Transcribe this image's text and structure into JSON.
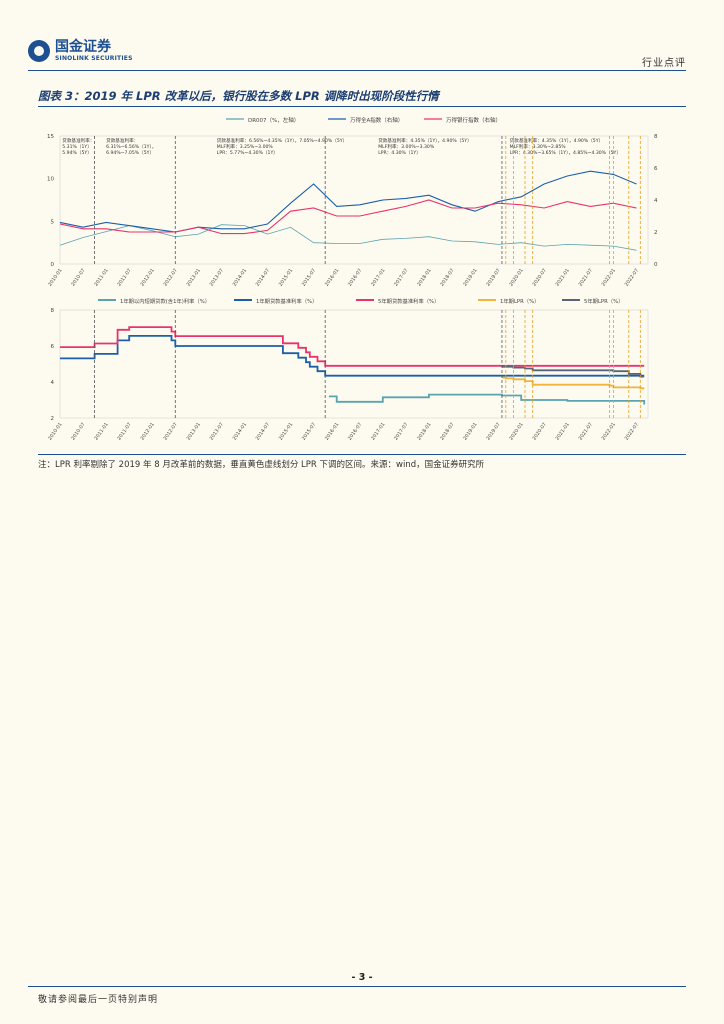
{
  "header": {
    "logo_cn": "国金证券",
    "logo_en": "SINOLINK SECURITIES",
    "category": "行业点评"
  },
  "figure": {
    "title": "图表 3：2019 年 LPR 改革以后，银行股在多数 LPR 调降时出现阶段性行情",
    "note": "注：LPR 利率剔除了 2019 年 8 月改革前的数据，垂直黄色虚线划分 LPR 下调的区间。来源：wind，国金证券研究所"
  },
  "footer": {
    "page": "- 3 -",
    "disclaimer": "敬请参阅最后一页特别声明"
  },
  "colors": {
    "brand": "#1d4f91",
    "dr007": "#5aa3b0",
    "wind_index": "#1c5fa8",
    "bank_index": "#e8336d",
    "lpr1y": "#f0b43c",
    "lpr5y": "#5a6478",
    "vline_grey": "#555555",
    "vline_yellow": "#e8a020"
  },
  "chart_data": [
    {
      "type": "line",
      "legend": [
        "DR007（%，左轴）",
        "万得全A指数（右轴）",
        "万得银行指数（右轴）"
      ],
      "x_ticks": [
        "2010-01",
        "2010-07",
        "2011-01",
        "2011-07",
        "2012-01",
        "2012-07",
        "2013-01",
        "2013-07",
        "2014-01",
        "2014-07",
        "2015-01",
        "2015-07",
        "2016-01",
        "2016-07",
        "2017-01",
        "2017-07",
        "2018-01",
        "2018-07",
        "2019-01",
        "2019-07",
        "2020-01",
        "2020-07",
        "2021-01",
        "2021-07",
        "2022-01",
        "2022-07"
      ],
      "y_left_ticks": [
        "15",
        "10",
        "5",
        "0"
      ],
      "y_right_ticks": [
        "8,000",
        "6,000",
        "4,000",
        "2,000",
        "0"
      ],
      "ylim_left": [
        0,
        15
      ],
      "ylim_right": [
        0,
        8000
      ],
      "annotations": [
        "贷款基准利率：\n5.31%（1Y）\n5.94%（5Y）",
        "贷款基准利率：\n6.31%~6.56%（1Y），\n6.94%~7.05%（5Y）",
        "贷款基准利率：6.56%~4.35%（1Y），7.05%~4.90%（5Y）\nMLF利率：3.25%~3.00%\nLPR：5.77%~4.30%（1Y）",
        "贷款基准利率：4.35%（1Y），4.90%（5Y）\nMLF利率：3.00%~3.30%\nLPR：4.30%（1Y）",
        "贷款基准利率：4.35%（1Y），4.90%（5Y）\nMLF利率：3.30%~2.85%\nLPR：4.30%~3.65%（1Y），4.85%~4.30%（5Y）"
      ],
      "series": [
        {
          "name": "DR007（%，左轴）",
          "x": [
            "2010-01",
            "2010-07",
            "2011-01",
            "2011-07",
            "2012-01",
            "2012-07",
            "2013-01",
            "2013-07",
            "2014-01",
            "2014-07",
            "2015-01",
            "2015-07",
            "2016-01",
            "2016-07",
            "2017-01",
            "2017-07",
            "2018-01",
            "2018-07",
            "2019-01",
            "2019-07",
            "2020-01",
            "2020-07",
            "2021-01",
            "2021-07",
            "2022-01",
            "2022-07"
          ],
          "values": [
            2.2,
            3.1,
            3.8,
            4.5,
            3.9,
            3.2,
            3.5,
            4.6,
            4.5,
            3.5,
            4.3,
            2.5,
            2.4,
            2.4,
            2.9,
            3.0,
            3.2,
            2.7,
            2.6,
            2.3,
            2.5,
            2.1,
            2.3,
            2.2,
            2.1,
            1.6
          ]
        },
        {
          "name": "万得全A指数（右轴）",
          "x": [
            "2010-01",
            "2010-07",
            "2011-01",
            "2011-07",
            "2012-01",
            "2012-07",
            "2013-01",
            "2013-07",
            "2014-01",
            "2014-07",
            "2015-01",
            "2015-07",
            "2016-01",
            "2016-07",
            "2017-01",
            "2017-07",
            "2018-01",
            "2018-07",
            "2019-01",
            "2019-07",
            "2020-01",
            "2020-07",
            "2021-01",
            "2021-07",
            "2022-01",
            "2022-07"
          ],
          "values": [
            2600,
            2300,
            2600,
            2400,
            2200,
            2000,
            2300,
            2200,
            2200,
            2500,
            3800,
            5000,
            3600,
            3700,
            4000,
            4100,
            4300,
            3700,
            3300,
            3900,
            4200,
            5000,
            5500,
            5800,
            5600,
            5000
          ]
        },
        {
          "name": "万得银行指数（右轴）",
          "x": [
            "2010-01",
            "2010-07",
            "2011-01",
            "2011-07",
            "2012-01",
            "2012-07",
            "2013-01",
            "2013-07",
            "2014-01",
            "2014-07",
            "2015-01",
            "2015-07",
            "2016-01",
            "2016-07",
            "2017-01",
            "2017-07",
            "2018-01",
            "2018-07",
            "2019-01",
            "2019-07",
            "2020-01",
            "2020-07",
            "2021-01",
            "2021-07",
            "2022-01",
            "2022-07"
          ],
          "values": [
            2500,
            2200,
            2200,
            2000,
            2000,
            2000,
            2300,
            1900,
            1900,
            2100,
            3300,
            3500,
            3000,
            3000,
            3300,
            3600,
            4000,
            3500,
            3500,
            3800,
            3700,
            3500,
            3900,
            3600,
            3800,
            3500
          ]
        }
      ]
    },
    {
      "type": "line",
      "legend": [
        "1年期以内短期贷款(含1年)利率（%）",
        "1年期贷款基准利率（%）",
        "5年期贷款基准利率（%）",
        "1年期LPR（%）",
        "5年期LPR（%）"
      ],
      "x_ticks": [
        "2010-01",
        "2010-07",
        "2011-01",
        "2011-07",
        "2012-01",
        "2012-07",
        "2013-01",
        "2013-07",
        "2014-01",
        "2014-07",
        "2015-01",
        "2015-07",
        "2016-01",
        "2016-07",
        "2017-01",
        "2017-07",
        "2018-01",
        "2018-07",
        "2019-01",
        "2019-07",
        "2020-01",
        "2020-07",
        "2021-01",
        "2021-07",
        "2022-01",
        "2022-07"
      ],
      "y_ticks": [
        "8",
        "6",
        "4",
        "2"
      ],
      "ylim": [
        2,
        8
      ],
      "series": [
        {
          "name": "1年期以内短期贷款(含1年)利率（%）",
          "x": [
            "2015-11",
            "2016-01",
            "2017-01",
            "2018-01",
            "2019-01",
            "2019-08",
            "2020-01",
            "2021-01",
            "2022-01",
            "2022-09"
          ],
          "values": [
            3.2,
            2.9,
            3.15,
            3.3,
            3.3,
            3.25,
            3.0,
            2.95,
            2.95,
            2.75
          ]
        },
        {
          "name": "1年期贷款基准利率（%）",
          "x": [
            "2010-01",
            "2010-10",
            "2011-04",
            "2011-07",
            "2012-06",
            "2012-07",
            "2014-11",
            "2015-03",
            "2015-05",
            "2015-06",
            "2015-08",
            "2015-10",
            "2022-09"
          ],
          "values": [
            5.31,
            5.56,
            6.31,
            6.56,
            6.31,
            6.0,
            5.6,
            5.35,
            5.1,
            4.85,
            4.6,
            4.35,
            4.35
          ]
        },
        {
          "name": "5年期贷款基准利率（%）",
          "x": [
            "2010-01",
            "2010-10",
            "2011-04",
            "2011-07",
            "2012-06",
            "2012-07",
            "2014-11",
            "2015-03",
            "2015-05",
            "2015-06",
            "2015-08",
            "2015-10",
            "2022-09"
          ],
          "values": [
            5.94,
            6.14,
            6.9,
            7.05,
            6.8,
            6.55,
            6.15,
            5.9,
            5.65,
            5.4,
            5.15,
            4.9,
            4.9
          ]
        },
        {
          "name": "1年期LPR（%）",
          "x": [
            "2019-08",
            "2019-09",
            "2019-11",
            "2020-02",
            "2020-04",
            "2021-12",
            "2022-01",
            "2022-08",
            "2022-09"
          ],
          "values": [
            4.25,
            4.2,
            4.15,
            4.05,
            3.85,
            3.8,
            3.7,
            3.65,
            3.65
          ]
        },
        {
          "name": "5年期LPR（%）",
          "x": [
            "2019-08",
            "2019-11",
            "2020-02",
            "2020-04",
            "2022-01",
            "2022-05",
            "2022-08",
            "2022-09"
          ],
          "values": [
            4.85,
            4.8,
            4.75,
            4.65,
            4.6,
            4.45,
            4.3,
            4.3
          ]
        }
      ]
    }
  ]
}
